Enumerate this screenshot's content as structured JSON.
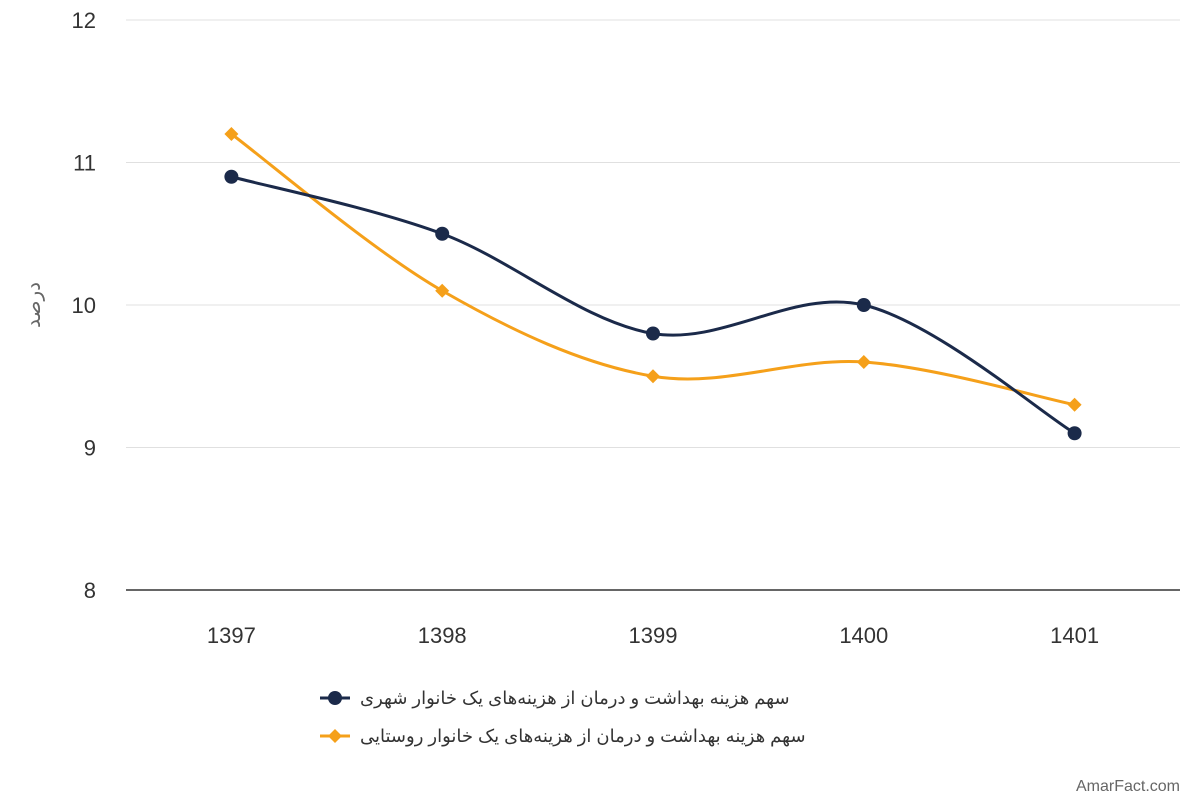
{
  "chart_data": {
    "type": "line",
    "title": "",
    "xlabel": "",
    "ylabel": "درصد",
    "categories": [
      "1397",
      "1398",
      "1399",
      "1400",
      "1401"
    ],
    "ylim": [
      8,
      12
    ],
    "yticks": [
      8,
      9,
      10,
      11,
      12
    ],
    "grid": true,
    "legend_position": "bottom",
    "series": [
      {
        "name": "سهم هزینه بهداشت و درمان از هزینه‌های یک خانوار شهری",
        "values": [
          10.9,
          10.5,
          9.8,
          10.0,
          9.1
        ],
        "color": "#1b2a4a",
        "marker": "circle"
      },
      {
        "name": "سهم هزینه بهداشت و درمان از هزینه‌های یک خانوار روستایی",
        "values": [
          11.2,
          10.1,
          9.5,
          9.6,
          9.3
        ],
        "color": "#f5a01a",
        "marker": "diamond"
      }
    ]
  },
  "credit": "AmarFact.com"
}
